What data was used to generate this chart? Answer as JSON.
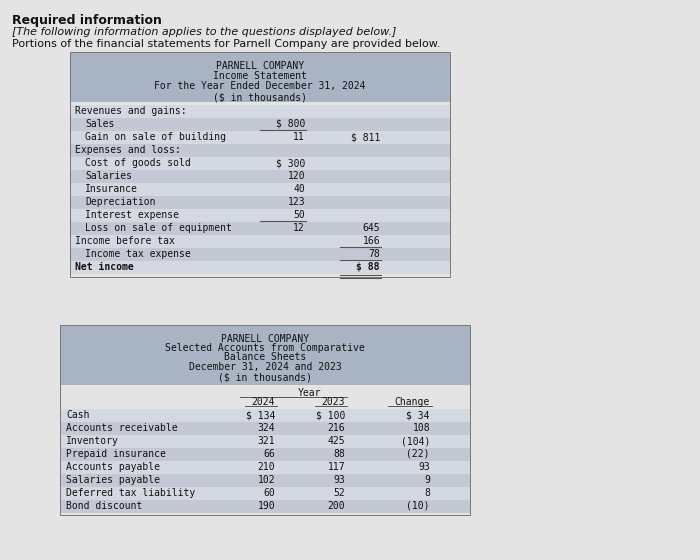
{
  "page_bg": "#e4e4e4",
  "header_title": "Required information",
  "italic_line1": "[The following information applies to the questions displayed below.]",
  "intro_line2": "Portions of the financial statements for Parnell Company are provided below.",
  "table1_header": [
    "PARNELL COMPANY",
    "Income Statement",
    "For the Year Ended December 31, 2024",
    "($ in thousands)"
  ],
  "table1_bg": "#a8b4c4",
  "table1_rows": [
    {
      "label": "Revenues and gains:",
      "col1": "",
      "col2": "",
      "indent": 0,
      "bold": false
    },
    {
      "label": "Sales",
      "col1": "$ 800",
      "col2": "",
      "indent": 1,
      "bold": false
    },
    {
      "label": "Gain on sale of building",
      "col1": "11",
      "col2": "$ 811",
      "indent": 1,
      "bold": false,
      "line_col1": true
    },
    {
      "label": "Expenses and loss:",
      "col1": "",
      "col2": "",
      "indent": 0,
      "bold": false
    },
    {
      "label": "Cost of goods sold",
      "col1": "$ 300",
      "col2": "",
      "indent": 1,
      "bold": false
    },
    {
      "label": "Salaries",
      "col1": "120",
      "col2": "",
      "indent": 1,
      "bold": false
    },
    {
      "label": "Insurance",
      "col1": "40",
      "col2": "",
      "indent": 1,
      "bold": false
    },
    {
      "label": "Depreciation",
      "col1": "123",
      "col2": "",
      "indent": 1,
      "bold": false
    },
    {
      "label": "Interest expense",
      "col1": "50",
      "col2": "",
      "indent": 1,
      "bold": false
    },
    {
      "label": "Loss on sale of equipment",
      "col1": "12",
      "col2": "645",
      "indent": 1,
      "bold": false,
      "line_col1": true
    },
    {
      "label": "Income before tax",
      "col1": "",
      "col2": "166",
      "indent": 0,
      "bold": false
    },
    {
      "label": "Income tax expense",
      "col1": "",
      "col2": "78",
      "indent": 1,
      "bold": false,
      "line_col2": true
    },
    {
      "label": "Net income",
      "col1": "",
      "col2": "$ 88",
      "indent": 0,
      "bold": true,
      "line_col2": true,
      "double_line": true
    }
  ],
  "table2_header": [
    "PARNELL COMPANY",
    "Selected Accounts from Comparative",
    "Balance Sheets",
    "December 31, 2024 and 2023",
    "($ in thousands)"
  ],
  "table2_bg": "#a8b4c4",
  "table2_rows": [
    {
      "label": "Cash",
      "c2024": "$ 134",
      "c2023": "$ 100",
      "change": "$ 34"
    },
    {
      "label": "Accounts receivable",
      "c2024": "324",
      "c2023": "216",
      "change": "108"
    },
    {
      "label": "Inventory",
      "c2024": "321",
      "c2023": "425",
      "change": "(104)"
    },
    {
      "label": "Prepaid insurance",
      "c2024": "66",
      "c2023": "88",
      "change": "(22)"
    },
    {
      "label": "Accounts payable",
      "c2024": "210",
      "c2023": "117",
      "change": "93"
    },
    {
      "label": "Salaries payable",
      "c2024": "102",
      "c2023": "93",
      "change": "9"
    },
    {
      "label": "Deferred tax liability",
      "c2024": "60",
      "c2023": "52",
      "change": "8"
    },
    {
      "label": "Bond discount",
      "c2024": "190",
      "c2023": "200",
      "change": "(10)"
    }
  ],
  "mono": "monospace",
  "sans": "DejaVu Sans",
  "text_color": "#111111",
  "line_color": "#555555"
}
